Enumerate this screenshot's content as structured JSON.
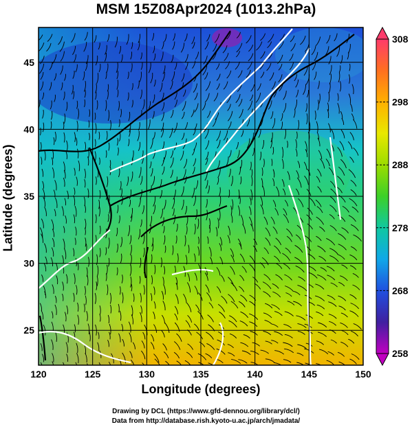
{
  "title": "MSM 15Z08Apr2024 (1013.2hPa)",
  "xlabel": "Longitude (degrees)",
  "ylabel": "Latitude  (degrees)",
  "credits": [
    "Drawing by DCL (https://www.gfd-dennou.org/library/dcl/)",
    "Data from http://database.rish.kyoto-u.ac.jp/arch/jmadata/"
  ],
  "map": {
    "lon_range": [
      120,
      150
    ],
    "lat_range": [
      22.4,
      47.6
    ],
    "lon_ticks": [
      "120",
      "125",
      "130",
      "135",
      "140",
      "145",
      "150"
    ],
    "lat_ticks": [
      "25",
      "30",
      "35",
      "40",
      "45"
    ]
  },
  "colorbar": {
    "min": 258,
    "max": 308,
    "ticks": [
      "308",
      "298",
      "288",
      "278",
      "268",
      "258"
    ],
    "colors": [
      "#ff3b6b",
      "#ff7020",
      "#ffb000",
      "#e8e800",
      "#9cdc00",
      "#3cd028",
      "#10c8a0",
      "#10a8e8",
      "#2050e0",
      "#4020a0",
      "#c000c0"
    ]
  }
}
